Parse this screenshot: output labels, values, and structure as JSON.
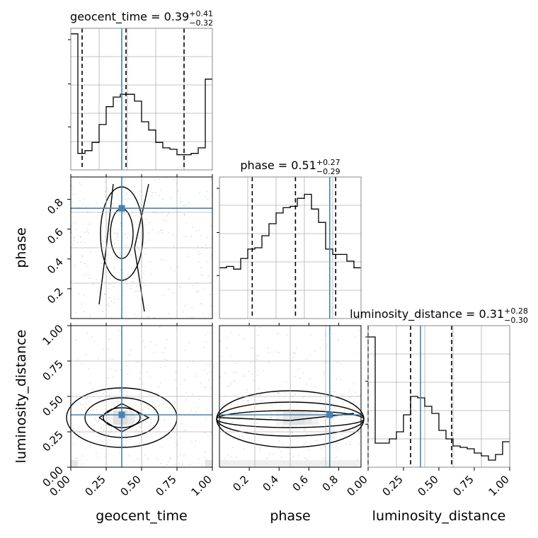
{
  "chart_data": {
    "type": "corner",
    "truth_color": "#4682b4",
    "parameters": [
      "geocent_time",
      "phase",
      "luminosity_distance"
    ],
    "axis_labels": {
      "geocent_time": "geocent_time",
      "phase": "phase",
      "luminosity_distance": "luminosity_distance"
    },
    "truths": {
      "geocent_time": 0.36,
      "phase": 0.74,
      "luminosity_distance": 0.37
    },
    "ranges": {
      "geocent_time": [
        0,
        1
      ],
      "phase": [
        0.0,
        0.95
      ],
      "luminosity_distance": [
        0,
        1
      ]
    },
    "ticks": {
      "geocent_time": [
        "0.00",
        "0.25",
        "0.50",
        "0.75",
        "1.00"
      ],
      "phase": [
        "0.2",
        "0.4",
        "0.6",
        "0.8"
      ],
      "luminosity_distance": [
        "0.00",
        "0.25",
        "0.50",
        "0.75",
        "1.00"
      ]
    },
    "marginals": [
      {
        "param": "geocent_time",
        "title_prefix": "geocent_time = 0.39",
        "title_plus": "+0.41",
        "title_minus": "−0.32",
        "quantiles": [
          0.08,
          0.39,
          0.8
        ],
        "hist": [
          0.99,
          0.12,
          0.14,
          0.2,
          0.33,
          0.46,
          0.53,
          0.55,
          0.55,
          0.5,
          0.35,
          0.29,
          0.2,
          0.16,
          0.15,
          0.11,
          0.11,
          0.12,
          0.16,
          0.66
        ],
        "ylim": [
          0,
          1.03
        ]
      },
      {
        "param": "phase",
        "title_prefix": "phase = 0.51",
        "title_plus": "+0.27",
        "title_minus": "−0.29",
        "quantiles": [
          0.22,
          0.51,
          0.78
        ],
        "hist": [
          0.38,
          0.39,
          0.37,
          0.45,
          0.52,
          0.53,
          0.62,
          0.71,
          0.79,
          0.83,
          0.84,
          0.9,
          0.93,
          0.82,
          0.72,
          0.52,
          0.48,
          0.48,
          0.43,
          0.38
        ],
        "ylim": [
          0,
          1.06
        ]
      },
      {
        "param": "luminosity_distance",
        "title_prefix": "luminosity_distance = 0.31",
        "title_plus": "+0.28",
        "title_minus": "−0.30",
        "quantiles": [
          0.3,
          0.59
        ],
        "extra_dashed": [
          0.0
        ],
        "hist": [
          0.92,
          0.17,
          0.17,
          0.2,
          0.25,
          0.37,
          0.5,
          0.49,
          0.43,
          0.38,
          0.26,
          0.2,
          0.15,
          0.14,
          0.13,
          0.1,
          0.08,
          0.05,
          0.09,
          0.18
        ],
        "ylim": [
          0,
          1.0
        ]
      }
    ]
  }
}
